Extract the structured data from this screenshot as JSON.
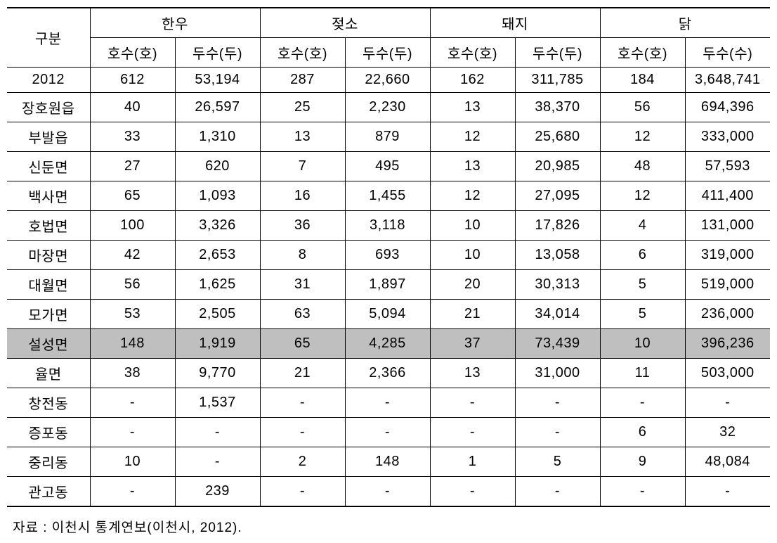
{
  "table": {
    "header": {
      "gubun": "구분",
      "groups": [
        {
          "label": "한우",
          "sub1": "호수(호)",
          "sub2": "두수(두)"
        },
        {
          "label": "젖소",
          "sub1": "호수(호)",
          "sub2": "두수(두)"
        },
        {
          "label": "돼지",
          "sub1": "호수(호)",
          "sub2": "두수(두)"
        },
        {
          "label": "닭",
          "sub1": "호수(호)",
          "sub2": "두수(수)"
        }
      ]
    },
    "rows": [
      {
        "label": "2012",
        "cells": [
          "612",
          "53,194",
          "287",
          "22,660",
          "162",
          "311,785",
          "184",
          "3,648,741"
        ],
        "highlight": false
      },
      {
        "label": "장호원읍",
        "cells": [
          "40",
          "26,597",
          "25",
          "2,230",
          "13",
          "38,370",
          "56",
          "694,396"
        ],
        "highlight": false
      },
      {
        "label": "부발읍",
        "cells": [
          "33",
          "1,310",
          "13",
          "879",
          "12",
          "25,680",
          "12",
          "333,000"
        ],
        "highlight": false
      },
      {
        "label": "신둔면",
        "cells": [
          "27",
          "620",
          "7",
          "495",
          "13",
          "20,985",
          "48",
          "57,593"
        ],
        "highlight": false
      },
      {
        "label": "백사면",
        "cells": [
          "65",
          "1,093",
          "16",
          "1,455",
          "12",
          "27,095",
          "12",
          "411,400"
        ],
        "highlight": false
      },
      {
        "label": "호법면",
        "cells": [
          "100",
          "3,326",
          "36",
          "3,118",
          "10",
          "17,826",
          "4",
          "131,000"
        ],
        "highlight": false
      },
      {
        "label": "마장면",
        "cells": [
          "42",
          "2,653",
          "8",
          "693",
          "10",
          "13,058",
          "6",
          "319,000"
        ],
        "highlight": false
      },
      {
        "label": "대월면",
        "cells": [
          "56",
          "1,625",
          "31",
          "1,897",
          "20",
          "30,313",
          "5",
          "519,000"
        ],
        "highlight": false
      },
      {
        "label": "모가면",
        "cells": [
          "53",
          "2,505",
          "63",
          "5,094",
          "21",
          "34,014",
          "5",
          "236,000"
        ],
        "highlight": false
      },
      {
        "label": "설성면",
        "cells": [
          "148",
          "1,919",
          "65",
          "4,285",
          "37",
          "73,439",
          "10",
          "396,236"
        ],
        "highlight": true
      },
      {
        "label": "율면",
        "cells": [
          "38",
          "9,770",
          "21",
          "2,366",
          "13",
          "31,000",
          "11",
          "503,000"
        ],
        "highlight": false
      },
      {
        "label": "창전동",
        "cells": [
          "-",
          "1,537",
          "-",
          "-",
          "-",
          "-",
          "-",
          "-"
        ],
        "highlight": false
      },
      {
        "label": "증포동",
        "cells": [
          "-",
          "-",
          "-",
          "-",
          "-",
          "-",
          "6",
          "32"
        ],
        "highlight": false
      },
      {
        "label": "중리동",
        "cells": [
          "10",
          "-",
          "2",
          "148",
          "1",
          "5",
          "9",
          "48,084"
        ],
        "highlight": false
      },
      {
        "label": "관고동",
        "cells": [
          "-",
          "239",
          "-",
          "-",
          "-",
          "-",
          "-",
          "-"
        ],
        "highlight": false
      }
    ]
  },
  "styling": {
    "highlight_color": "#bfbfbf",
    "border_color": "#000000",
    "background_color": "#ffffff",
    "font_size_table": 20,
    "font_size_source": 19,
    "col_widths": {
      "gubun": 118,
      "data": 121
    }
  },
  "source_note": "자료 : 이천시 통계연보(이천시, 2012)."
}
